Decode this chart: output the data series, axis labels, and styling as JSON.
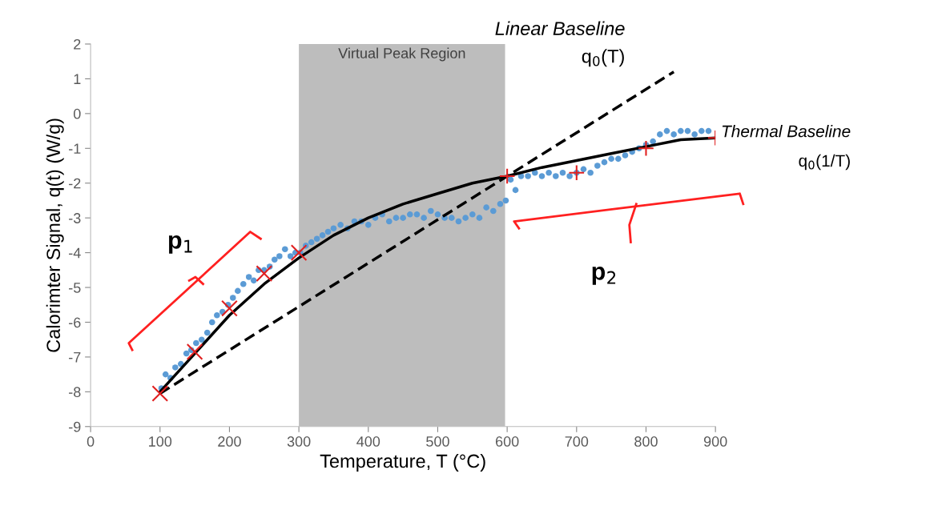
{
  "chart_data": {
    "type": "scatter",
    "xlabel": "Temperature, T (°C)",
    "ylabel": "Calorimter Signal, q(t) (W/g)",
    "xlim": [
      0,
      900
    ],
    "xticks": [
      0,
      100,
      200,
      300,
      400,
      500,
      600,
      700,
      800,
      900
    ],
    "ylim": [
      -9,
      2
    ],
    "yticks": [
      -9,
      -8,
      -7,
      -6,
      -5,
      -4,
      -3,
      -2,
      -1,
      0,
      1,
      2
    ],
    "grid": false,
    "legend": false,
    "series": [
      {
        "color": "#5b9bd5",
        "marker": "circle",
        "x": [
          102,
          108,
          115,
          122,
          130,
          138,
          145,
          152,
          160,
          168,
          175,
          182,
          190,
          198,
          205,
          212,
          220,
          228,
          235,
          242,
          250,
          258,
          265,
          272,
          280,
          288,
          295,
          302,
          310,
          318,
          326,
          334,
          342,
          350,
          360,
          370,
          380,
          390,
          400,
          410,
          420,
          430,
          440,
          450,
          460,
          470,
          480,
          490,
          500,
          510,
          520,
          530,
          540,
          550,
          560,
          570,
          580,
          590,
          598,
          605,
          612,
          620,
          630,
          640,
          650,
          660,
          670,
          680,
          690,
          700,
          710,
          720,
          730,
          740,
          750,
          760,
          770,
          780,
          790,
          800,
          810,
          820,
          830,
          840,
          850,
          860,
          870,
          880,
          890
        ],
        "values": [
          -7.9,
          -7.5,
          -7.6,
          -7.3,
          -7.2,
          -6.9,
          -6.8,
          -6.6,
          -6.5,
          -6.3,
          -6.0,
          -5.8,
          -5.7,
          -5.5,
          -5.3,
          -5.1,
          -4.9,
          -4.7,
          -4.8,
          -4.5,
          -4.5,
          -4.4,
          -4.2,
          -4.1,
          -3.9,
          -4.1,
          -4.0,
          -4.0,
          -3.8,
          -3.7,
          -3.6,
          -3.5,
          -3.4,
          -3.3,
          -3.2,
          -3.3,
          -3.1,
          -3.1,
          -3.2,
          -3.0,
          -2.9,
          -3.1,
          -3.0,
          -3.0,
          -2.9,
          -2.9,
          -3.0,
          -2.8,
          -2.9,
          -3.0,
          -3.0,
          -3.1,
          -3.0,
          -2.9,
          -3.0,
          -2.7,
          -2.8,
          -2.6,
          -2.5,
          -1.9,
          -2.2,
          -1.8,
          -1.8,
          -1.7,
          -1.8,
          -1.7,
          -1.8,
          -1.7,
          -1.8,
          -1.7,
          -1.6,
          -1.7,
          -1.5,
          -1.4,
          -1.3,
          -1.3,
          -1.2,
          -1.1,
          -1.0,
          -0.9,
          -0.8,
          -0.6,
          -0.5,
          -0.6,
          -0.5,
          -0.5,
          -0.6,
          -0.5,
          -0.5
        ]
      },
      {
        "type": "line",
        "color": "#000000",
        "line_style": "solid",
        "x": [
          100,
          150,
          200,
          250,
          300,
          350,
          400,
          450,
          500,
          550,
          600,
          650,
          700,
          750,
          800,
          850,
          900
        ],
        "values": [
          -8.0,
          -6.9,
          -5.8,
          -4.9,
          -4.15,
          -3.5,
          -3.0,
          -2.6,
          -2.3,
          -2.0,
          -1.8,
          -1.55,
          -1.35,
          -1.15,
          -0.95,
          -0.75,
          -0.7
        ]
      },
      {
        "type": "line",
        "color": "#000000",
        "line_style": "dashed",
        "x": [
          100,
          840
        ],
        "values": [
          -8.05,
          1.2
        ]
      },
      {
        "color": "#e02020",
        "marker": "cross",
        "x": [
          100,
          150,
          200,
          250,
          300
        ],
        "values": [
          -8.05,
          -6.85,
          -5.6,
          -4.6,
          -4.0
        ]
      },
      {
        "color": "#e02020",
        "marker": "plus",
        "x": [
          600,
          700,
          800,
          900
        ],
        "values": [
          -1.8,
          -1.7,
          -1.0,
          -0.7
        ]
      }
    ],
    "bands": [
      {
        "axis": "x",
        "from": 300,
        "to": 597,
        "label": "Virtual Peak Region",
        "color": "#bdbdbd"
      }
    ],
    "annotations": [
      "Linear Baseline",
      "q$_{0}$(T)",
      "Thermal Baseline",
      "q$_{0}$(1/T)",
      "p$_{1}$",
      "p$_{2}$"
    ]
  }
}
